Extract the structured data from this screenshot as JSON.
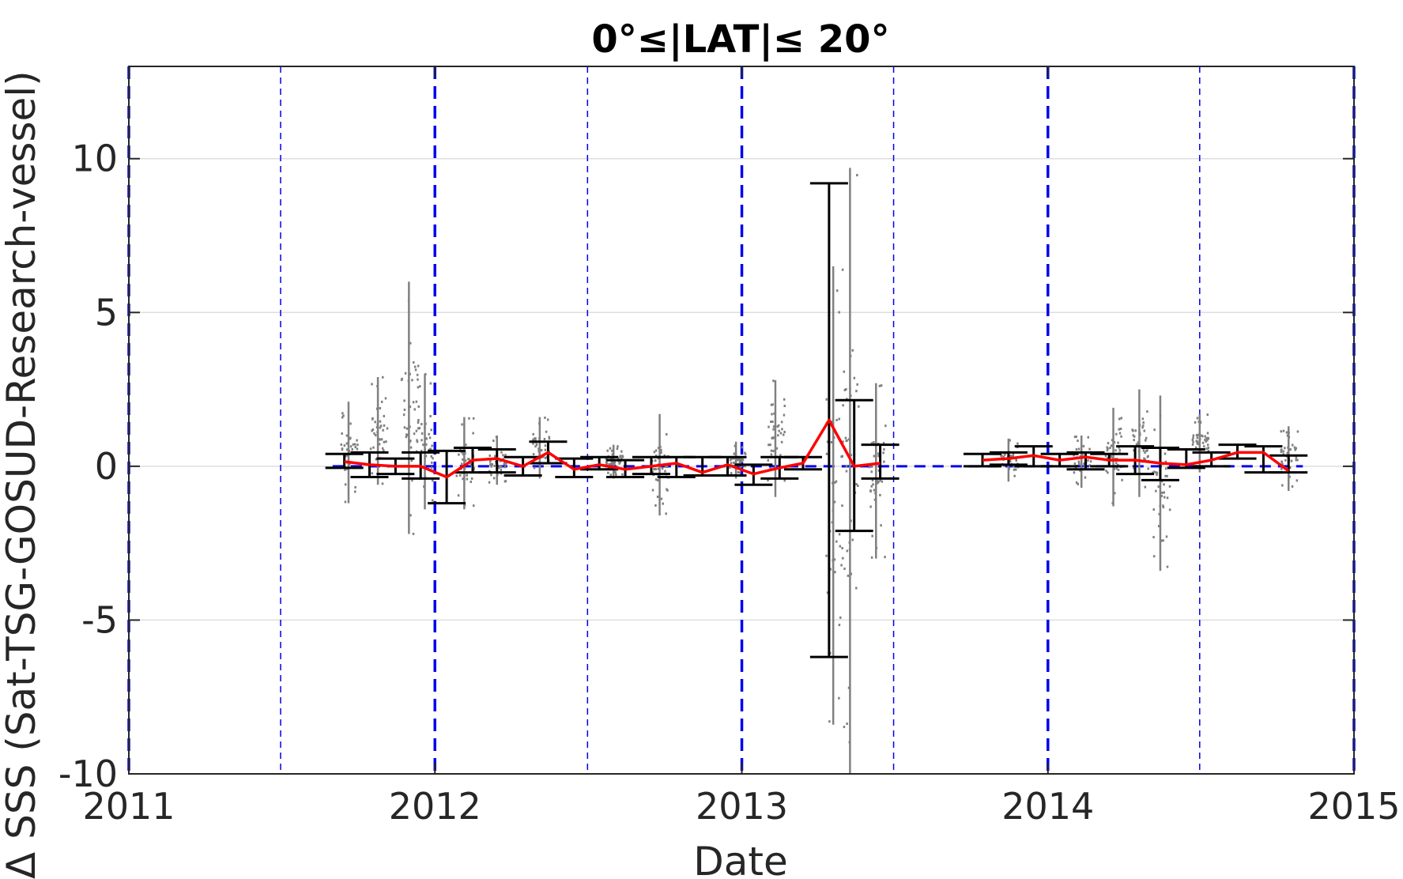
{
  "chart_data": {
    "type": "scatter",
    "title": "0°≤|LAT|≤ 20°",
    "xlabel": "Date",
    "ylabel": "Δ SSS (Sat-TSG-GOSUD-Research-vessel)",
    "xlim": [
      "2011-01-01",
      "2015-01-01"
    ],
    "ylim": [
      -10,
      13
    ],
    "x_ticks": [
      "2011",
      "2012",
      "2013",
      "2014",
      "2015"
    ],
    "y_ticks": [
      10,
      5,
      0,
      -5,
      -10
    ],
    "grid": "horizontal",
    "colors": {
      "points": "#808080",
      "monthly_mean": "#ff0000",
      "error_bars": "#000000",
      "year_lines": "#0000ee",
      "zero_line": "#0000ee",
      "grid": "#dedede"
    },
    "vertical_reference_lines": {
      "year_starts": [
        "2011-01-01",
        "2012-01-01",
        "2013-01-01",
        "2014-01-01",
        "2015-01-01"
      ],
      "mid_years": [
        "2011-07-01",
        "2012-07-01",
        "2013-07-01",
        "2014-07-01"
      ]
    },
    "series": [
      {
        "kind": "scatter",
        "clusters": [
          {
            "date": "2011-09-20",
            "min": -1.2,
            "max": 2.1
          },
          {
            "date": "2011-10-25",
            "min": -0.6,
            "max": 2.9
          },
          {
            "date": "2011-12-01",
            "min": -2.2,
            "max": 6.0
          },
          {
            "date": "2011-12-20",
            "min": -1.4,
            "max": 3.0
          },
          {
            "date": "2012-02-05",
            "min": -1.4,
            "max": 1.6
          },
          {
            "date": "2012-03-15",
            "min": -0.6,
            "max": 1.0
          },
          {
            "date": "2012-05-05",
            "min": -0.4,
            "max": 1.6
          },
          {
            "date": "2012-08-01",
            "min": -0.4,
            "max": 0.7
          },
          {
            "date": "2012-09-25",
            "min": -1.6,
            "max": 1.7
          },
          {
            "date": "2012-12-25",
            "min": -0.4,
            "max": 0.8
          },
          {
            "date": "2013-02-10",
            "min": -1.0,
            "max": 2.8
          },
          {
            "date": "2013-04-20",
            "min": -8.4,
            "max": 6.5
          },
          {
            "date": "2013-05-10",
            "min": -10.0,
            "max": 9.7
          },
          {
            "date": "2013-06-10",
            "min": -3.0,
            "max": 2.7
          },
          {
            "date": "2013-11-15",
            "min": -0.5,
            "max": 0.9
          },
          {
            "date": "2014-02-10",
            "min": -0.7,
            "max": 1.0
          },
          {
            "date": "2014-03-20",
            "min": -1.3,
            "max": 1.9
          },
          {
            "date": "2014-04-20",
            "min": -1.0,
            "max": 2.5
          },
          {
            "date": "2014-05-15",
            "min": -3.4,
            "max": 2.3
          },
          {
            "date": "2014-07-01",
            "min": -0.2,
            "max": 1.7
          },
          {
            "date": "2014-10-15",
            "min": -0.8,
            "max": 1.3
          }
        ]
      },
      {
        "kind": "line",
        "x": [
          "2011-09-15",
          "2011-10-15",
          "2011-11-15",
          "2011-12-15",
          "2012-01-15",
          "2012-02-15",
          "2012-03-15",
          "2012-04-15",
          "2012-05-15",
          "2012-06-15",
          "2012-07-15",
          "2012-08-15",
          "2012-09-15",
          "2012-10-15",
          "2012-11-15",
          "2012-12-15",
          "2013-01-15",
          "2013-02-15",
          "2013-03-15",
          "2013-04-15",
          "2013-05-15",
          "2013-06-15",
          "2013-10-15",
          "2013-11-15",
          "2013-12-15",
          "2014-01-15",
          "2014-02-15",
          "2014-03-15",
          "2014-04-15",
          "2014-05-15",
          "2014-06-15",
          "2014-07-15",
          "2014-08-15",
          "2014-09-15",
          "2014-10-15"
        ],
        "y": [
          0.15,
          0.05,
          0.0,
          0.0,
          -0.35,
          0.2,
          0.25,
          0.0,
          0.45,
          -0.1,
          0.05,
          -0.1,
          0.0,
          0.1,
          -0.2,
          0.05,
          -0.25,
          -0.05,
          0.1,
          1.5,
          0.0,
          0.1,
          0.2,
          0.25,
          0.35,
          0.2,
          0.3,
          0.2,
          0.2,
          0.1,
          0.05,
          0.2,
          0.45,
          0.45,
          -0.15
        ]
      },
      {
        "kind": "errorbar",
        "x": [
          "2011-09-15",
          "2011-10-15",
          "2011-11-15",
          "2011-12-15",
          "2012-01-15",
          "2012-02-15",
          "2012-03-15",
          "2012-04-15",
          "2012-05-15",
          "2012-06-15",
          "2012-07-15",
          "2012-08-15",
          "2012-09-15",
          "2012-10-15",
          "2012-11-15",
          "2012-12-15",
          "2013-01-15",
          "2013-02-15",
          "2013-03-15",
          "2013-04-15",
          "2013-05-15",
          "2013-06-15",
          "2013-10-15",
          "2013-11-15",
          "2013-12-15",
          "2014-01-15",
          "2014-02-15",
          "2014-03-15",
          "2014-04-15",
          "2014-05-15",
          "2014-06-15",
          "2014-07-15",
          "2014-08-15",
          "2014-09-15",
          "2014-10-15"
        ],
        "lower": [
          -0.05,
          -0.35,
          -0.25,
          -0.4,
          -1.2,
          -0.2,
          -0.2,
          -0.3,
          0.1,
          -0.35,
          -0.1,
          -0.35,
          -0.25,
          -0.35,
          -0.3,
          -0.3,
          -0.6,
          -0.4,
          -0.1,
          -6.2,
          -2.1,
          -0.4,
          0.0,
          0.05,
          0.0,
          0.0,
          -0.1,
          0.0,
          -0.25,
          -0.45,
          -0.05,
          0.0,
          0.25,
          -0.2,
          -0.2
        ],
        "upper": [
          0.4,
          0.45,
          0.25,
          0.45,
          0.5,
          0.6,
          0.55,
          0.3,
          0.8,
          0.25,
          0.3,
          0.2,
          0.3,
          0.3,
          0.3,
          0.3,
          0.05,
          0.3,
          0.3,
          9.2,
          2.15,
          0.7,
          0.4,
          0.45,
          0.65,
          0.4,
          0.45,
          0.4,
          0.65,
          0.6,
          0.55,
          0.45,
          0.7,
          0.65,
          0.35
        ]
      }
    ]
  }
}
